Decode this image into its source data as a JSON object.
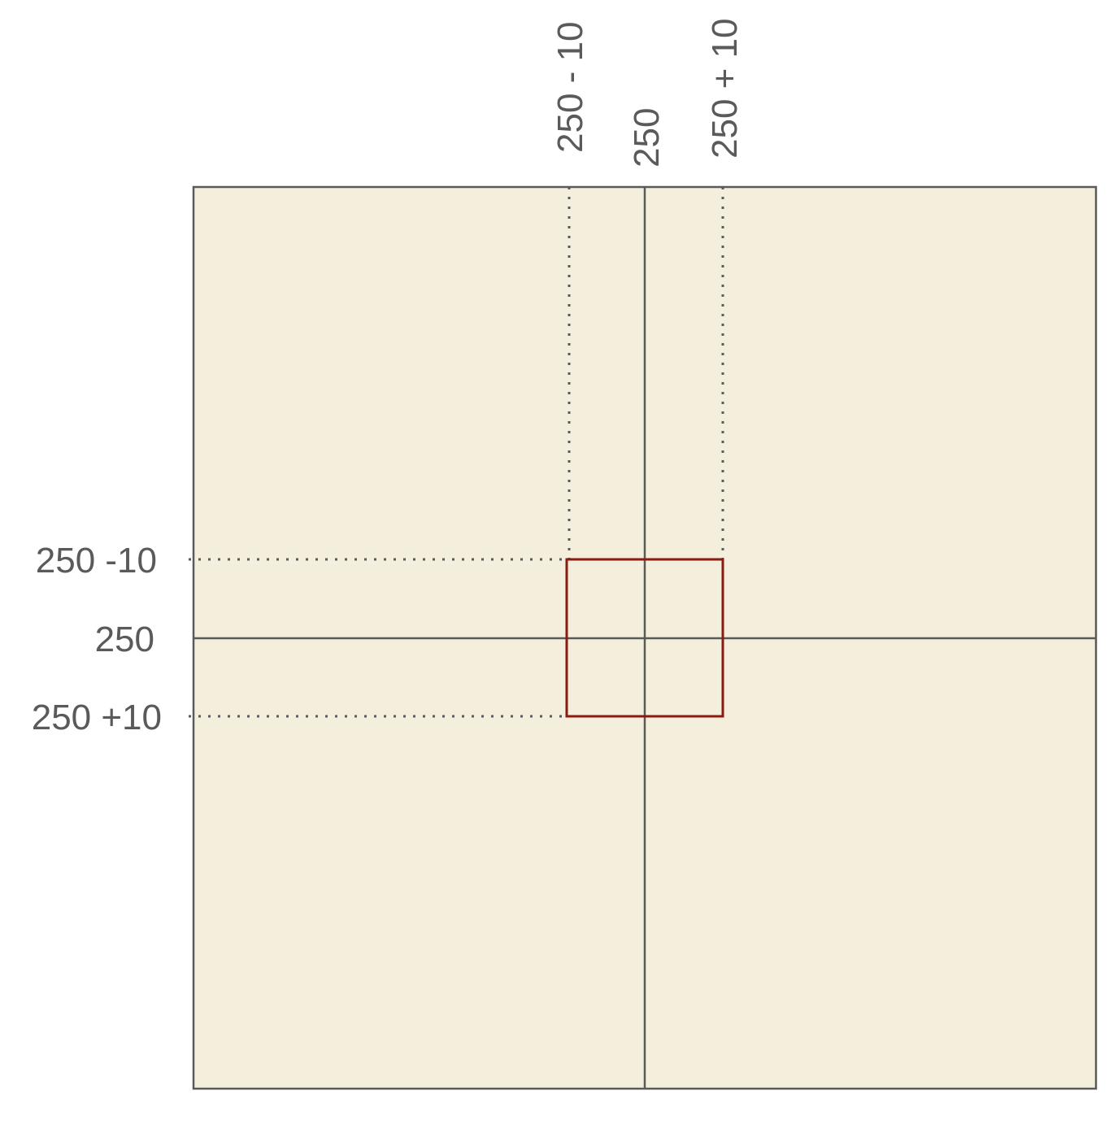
{
  "colors": {
    "canvas_fill": "#f3efdc",
    "line": "#5a5a58",
    "highlight_box": "#8b1a10",
    "text": "#5a5a58"
  },
  "labels": {
    "x_minus": "250 - 10",
    "x_center": "250",
    "x_plus": "250 + 10",
    "y_minus": "250 -10",
    "y_center": "250",
    "y_plus": "250 +10"
  }
}
